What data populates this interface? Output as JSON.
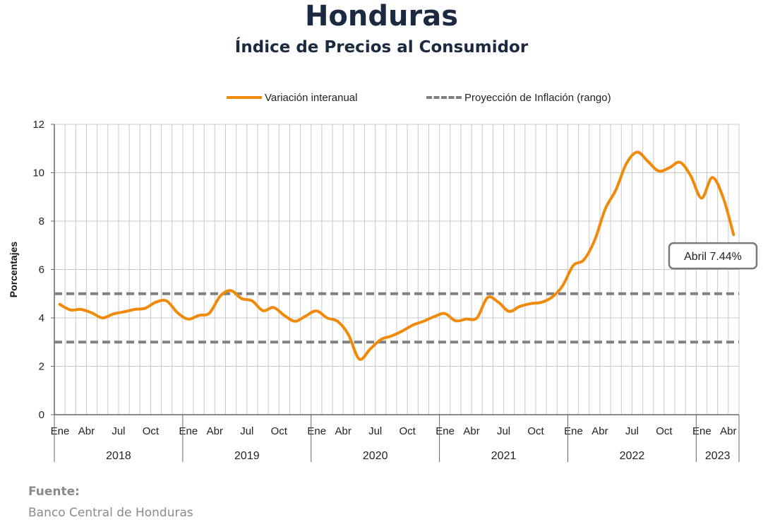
{
  "header": {
    "title": "Honduras",
    "subtitle": "Índice de Precios al Consumidor"
  },
  "source": {
    "heading": "Fuente:",
    "text": "Banco Central de Honduras"
  },
  "colors": {
    "series_line": "#f08a0b",
    "projection_line": "#808080",
    "grid": "#c8c8c8",
    "axis": "#666666"
  },
  "chart_data": {
    "type": "line",
    "title": "",
    "xlabel": "",
    "ylabel": "Porcentajes",
    "ylim": [
      0,
      12
    ],
    "yticks": [
      0,
      2,
      4,
      6,
      8,
      10,
      12
    ],
    "grid": true,
    "legend_position": "top",
    "month_tick_labels": [
      "Ene",
      "Abr",
      "Jul",
      "Oct"
    ],
    "years": [
      {
        "label": "2018",
        "months": 12
      },
      {
        "label": "2019",
        "months": 12
      },
      {
        "label": "2020",
        "months": 12
      },
      {
        "label": "2021",
        "months": 12
      },
      {
        "label": "2022",
        "months": 12
      },
      {
        "label": "2023",
        "months": 4
      }
    ],
    "series": [
      {
        "name": "Variación interanual",
        "style": "solid",
        "color": "#f08a0b",
        "values": [
          4.56,
          4.33,
          4.35,
          4.21,
          4.0,
          4.16,
          4.25,
          4.35,
          4.4,
          4.65,
          4.7,
          4.22,
          3.95,
          4.1,
          4.2,
          4.9,
          5.13,
          4.8,
          4.7,
          4.3,
          4.43,
          4.1,
          3.86,
          4.08,
          4.29,
          4.0,
          3.85,
          3.3,
          2.3,
          2.7,
          3.1,
          3.25,
          3.45,
          3.7,
          3.86,
          4.05,
          4.18,
          3.88,
          3.95,
          4.0,
          4.84,
          4.65,
          4.27,
          4.47,
          4.59,
          4.64,
          4.85,
          5.32,
          6.16,
          6.4,
          7.2,
          8.5,
          9.3,
          10.4,
          10.85,
          10.46,
          10.07,
          10.21,
          10.43,
          9.86,
          8.95,
          9.8,
          9.0,
          7.44
        ]
      },
      {
        "name": "Proyección de Inflación (rango)",
        "style": "dashed",
        "color": "#808080",
        "lower": 3,
        "upper": 5
      }
    ],
    "annotation": {
      "text": "Abril 7.44%",
      "x": "Abr 2023",
      "y": 7.44
    }
  }
}
